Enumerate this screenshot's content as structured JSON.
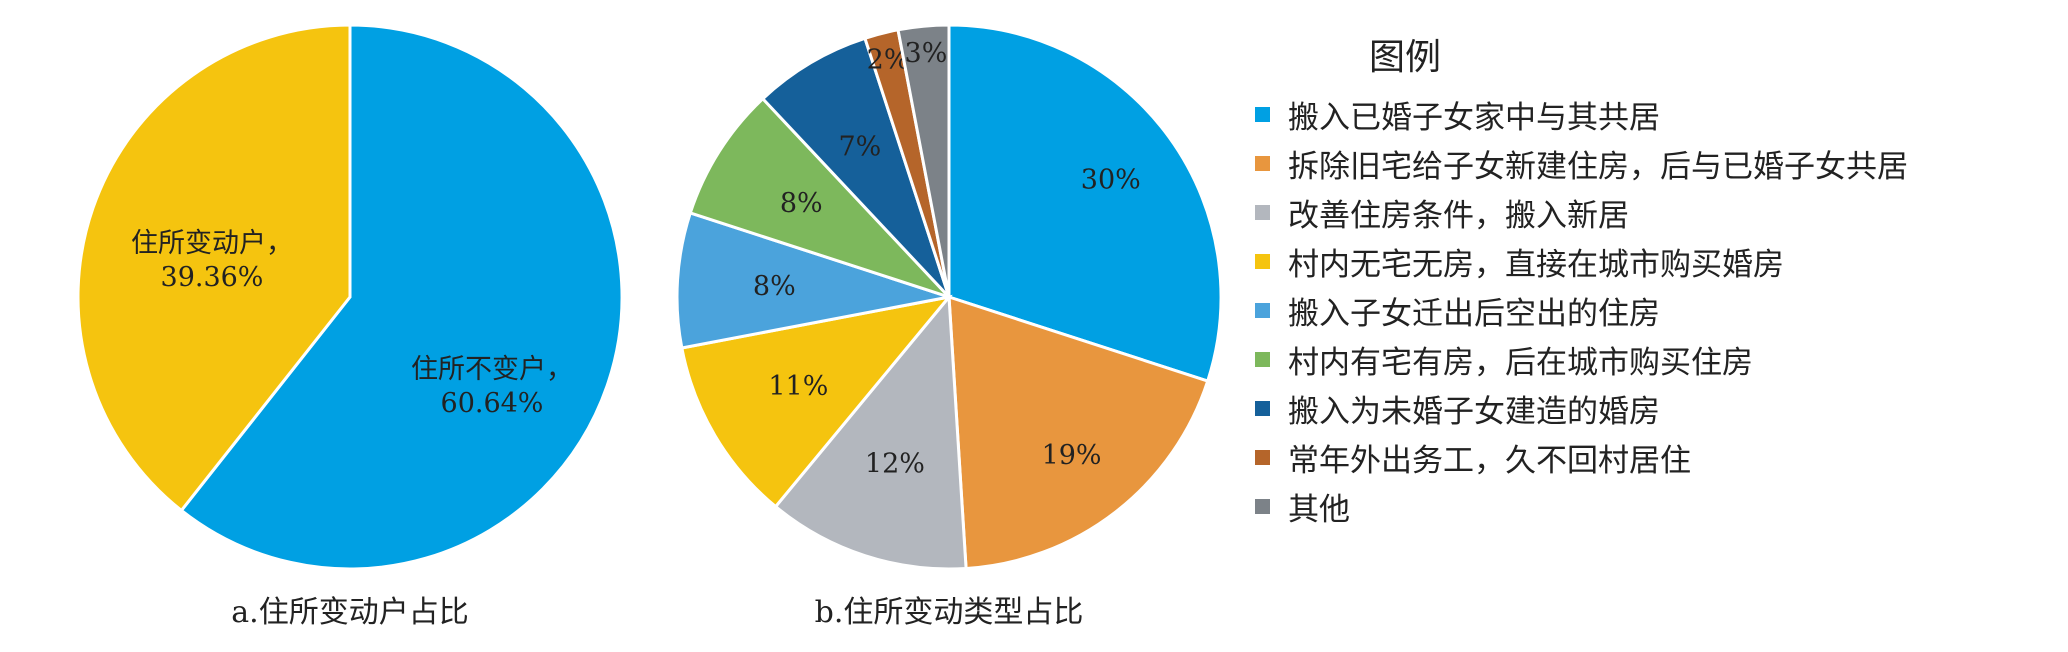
{
  "chart_data": [
    {
      "type": "pie",
      "caption": "a.住所变动户占比",
      "slices": [
        {
          "label": "住所不变户，60.64%",
          "value": 60.64,
          "color": "#00a0e3"
        },
        {
          "label": "住所变动户，39.36%",
          "value": 39.36,
          "color": "#f5c40f"
        }
      ]
    },
    {
      "type": "pie",
      "caption": "b.住所变动类型占比",
      "slices": [
        {
          "name": "搬入已婚子女家中与其共居",
          "value": 30,
          "label": "30%",
          "color": "#00a0e3"
        },
        {
          "name": "拆除旧宅给子女新建住房，后与已婚子女共居",
          "value": 19,
          "label": "19%",
          "color": "#e8963e"
        },
        {
          "name": "改善住房条件，搬入新居",
          "value": 12,
          "label": "12%",
          "color": "#b3b7be"
        },
        {
          "name": "村内无宅无房，直接在城市购买婚房",
          "value": 11,
          "label": "11%",
          "color": "#f5c40f"
        },
        {
          "name": "搬入子女迁出后空出的住房",
          "value": 8,
          "label": "8%",
          "color": "#4ba3dc"
        },
        {
          "name": "村内有宅有房，后在城市购买住房",
          "value": 8,
          "label": "8%",
          "color": "#7db85c"
        },
        {
          "name": "搬入为未婚子女建造的婚房",
          "value": 7,
          "label": "7%",
          "color": "#15609a"
        },
        {
          "name": "常年外出务工，久不回村居住",
          "value": 2,
          "label": "2%",
          "color": "#b5652a"
        },
        {
          "name": "其他",
          "value": 3,
          "label": "3%",
          "color": "#7c8288"
        }
      ]
    }
  ],
  "legend": {
    "title": "图例"
  }
}
